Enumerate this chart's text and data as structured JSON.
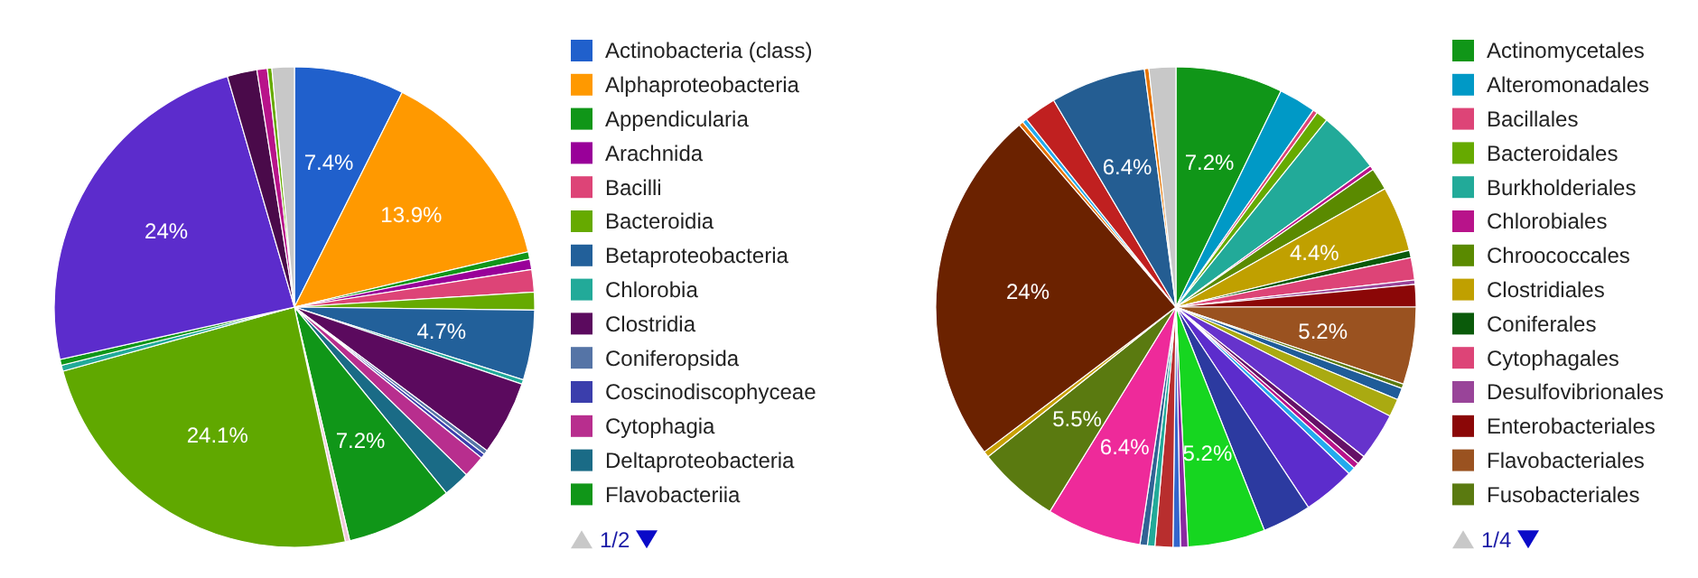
{
  "chart_data": [
    {
      "type": "pie",
      "legend": "right",
      "annotations": [
        "1/2"
      ],
      "categories": [
        "Actinobacteria (class)",
        "Alphaproteobacteria",
        "Appendicularia",
        "Arachnida",
        "Bacilli",
        "Bacteroidia",
        "Betaproteobacteria",
        "Chlorobia",
        "Clostridia",
        "Coniferopsida",
        "Coscinodiscophyceae",
        "Cytophagia",
        "Deltaproteobacteria",
        "Flavobacteriia",
        null,
        null,
        null,
        null,
        null,
        null,
        null,
        null,
        null
      ],
      "values": [
        7.4,
        13.9,
        0.5,
        0.7,
        1.5,
        1.2,
        4.7,
        0.3,
        5.0,
        0.3,
        0.3,
        1.5,
        1.8,
        7.2,
        0.3,
        24.1,
        0.4,
        0.4,
        24,
        2.0,
        0.7,
        0.3,
        1.5
      ],
      "colors": [
        "#2060cc",
        "#ff9900",
        "#109618",
        "#990099",
        "#dd4477",
        "#66aa00",
        "#22609a",
        "#22aa99",
        "#5b0a5e",
        "#5574a6",
        "#3b3eac",
        "#b82e8e",
        "#1a6b86",
        "#109618",
        "#f0c8d8",
        "#60a800",
        "#22aa99",
        "#109618",
        "#5c2ccc",
        "#4a0a4a",
        "#b8138a",
        "#66aa00",
        "#c8c8c8"
      ],
      "value_labels": [
        "7.4%",
        "13.9%",
        null,
        null,
        null,
        null,
        "4.7%",
        null,
        null,
        null,
        null,
        null,
        null,
        "7.2%",
        null,
        "24.1%",
        null,
        null,
        "24%",
        null,
        null,
        null,
        null
      ]
    },
    {
      "type": "pie",
      "legend": "right",
      "annotations": [
        "1/4"
      ],
      "categories": [
        "Actinomycetales",
        "Alteromonadales",
        "Bacillales",
        "Bacteroidales",
        "Burkholderiales",
        "Chlorobiales",
        "Chroococcales",
        "Clostridiales",
        "Coniferales",
        "Cytophagales",
        "Desulfovibrionales",
        "Enterobacteriales",
        "Flavobacteriales",
        "Fusobacteriales",
        null,
        null,
        null,
        null,
        null,
        null,
        null,
        null,
        null,
        null,
        null,
        null,
        null,
        null,
        null,
        null,
        null,
        null,
        null,
        null,
        null,
        null,
        null,
        null
      ],
      "values": [
        7.2,
        2.5,
        0.3,
        0.8,
        4.2,
        0.3,
        1.5,
        4.4,
        0.5,
        1.5,
        0.3,
        1.5,
        5.2,
        0.3,
        0.8,
        1.2,
        3.2,
        0.6,
        0.4,
        0.5,
        3.5,
        3.3,
        5.2,
        0.5,
        0.5,
        1.2,
        0.5,
        0.5,
        6.4,
        5.5,
        0.4,
        24,
        0.3,
        0.3,
        2.2,
        6.4,
        0.3,
        1.8
      ],
      "colors": [
        "#109618",
        "#0099c6",
        "#dd4477",
        "#66aa00",
        "#22aa99",
        "#b8138a",
        "#5a8a00",
        "#c0a000",
        "#0a5a0a",
        "#dd4477",
        "#994499",
        "#8b0707",
        "#9a5220",
        "#5a7a10",
        "#1f5c99",
        "#aaaa11",
        "#6633cc",
        "#651067",
        "#b8138a",
        "#22aaee",
        "#5c2ccc",
        "#2c3aa0",
        "#16d620",
        "#8a2aa0",
        "#3366cc",
        "#b82e2e",
        "#22aa99",
        "#316395",
        "#ee2a9a",
        "#5a7a10",
        "#c8a000",
        "#6b2200",
        "#e67300",
        "#22aaee",
        "#c02020",
        "#245d92",
        "#e67300",
        "#c8c8c8"
      ],
      "value_labels": [
        "7.2%",
        null,
        null,
        null,
        null,
        null,
        null,
        "4.4%",
        null,
        null,
        null,
        null,
        "5.2%",
        null,
        null,
        null,
        null,
        null,
        null,
        null,
        null,
        null,
        "5.2%",
        null,
        null,
        null,
        null,
        null,
        "6.4%",
        "5.5%",
        null,
        "24%",
        null,
        null,
        null,
        "6.4%",
        null,
        null
      ]
    }
  ]
}
